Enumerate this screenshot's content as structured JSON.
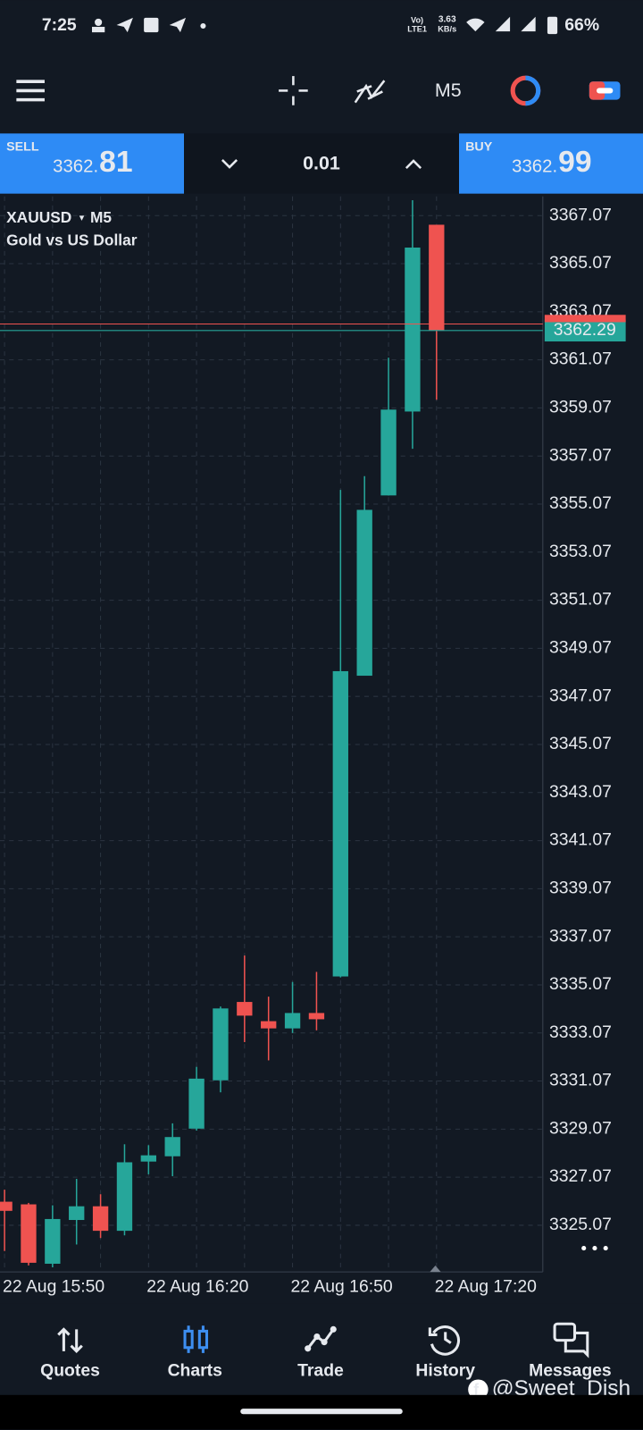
{
  "status_bar": {
    "time": "7:25",
    "network": "Vo)",
    "network_sub": "LTE1",
    "speed": "3.63",
    "speed_unit": "KB/s",
    "battery": "66%"
  },
  "toolbar": {
    "timeframe": "M5"
  },
  "trade_panel": {
    "sell": {
      "label": "SELL",
      "price_prefix": "3362.",
      "price_main": "81"
    },
    "volume": "0.01",
    "buy": {
      "label": "BUY",
      "price_prefix": "3362.",
      "price_main": "99"
    }
  },
  "chart_data": {
    "type": "candlestick",
    "symbol": "XAUUSD",
    "symbol_arrow": "▾",
    "timeframe": "M5",
    "subtitle": "Gold vs US Dollar",
    "categories": [
      "22 Aug 15:50",
      null,
      null,
      null,
      null,
      null,
      "22 Aug 16:20",
      null,
      null,
      null,
      null,
      null,
      "22 Aug 16:50",
      null,
      null,
      null,
      null,
      null,
      "22 Aug 17:20"
    ],
    "series": [
      {
        "up_color": "#26a69a",
        "down_color": "#ef5350",
        "open": [
          3326.05,
          3325.94,
          3323.47,
          3325.29,
          3325.86,
          3324.84,
          3327.72,
          3327.94,
          3329.09,
          3331.1,
          3334.36,
          3333.56,
          3333.26,
          3333.9,
          3335.42,
          3347.93,
          3355.43,
          3358.92,
          3366.69
        ],
        "high": [
          3326.55,
          3326.0,
          3325.9,
          3327.0,
          3326.36,
          3328.44,
          3328.4,
          3329.31,
          3331.66,
          3334.17,
          3336.29,
          3334.58,
          3335.19,
          3335.61,
          3355.66,
          3356.23,
          3361.16,
          3367.71,
          3366.69
        ],
        "low": [
          3324.0,
          3323.4,
          3323.32,
          3324.27,
          3324.54,
          3324.65,
          3327.19,
          3327.11,
          3329.01,
          3330.6,
          3332.69,
          3331.93,
          3333.07,
          3333.18,
          3335.38,
          3347.93,
          3355.43,
          3357.37,
          3359.41
        ],
        "close": [
          3325.67,
          3323.51,
          3325.33,
          3325.86,
          3324.84,
          3327.69,
          3327.98,
          3328.74,
          3331.17,
          3334.09,
          3333.79,
          3333.26,
          3333.9,
          3333.64,
          3348.12,
          3354.83,
          3359.0,
          3365.74,
          3362.29
        ]
      }
    ],
    "ylim": [
      3323.13,
      3367.87
    ],
    "yticks": [
      3325.07,
      3327.07,
      3329.07,
      3331.07,
      3333.07,
      3335.07,
      3337.07,
      3339.07,
      3341.07,
      3343.07,
      3345.07,
      3347.07,
      3349.07,
      3351.07,
      3353.07,
      3355.07,
      3357.07,
      3359.07,
      3361.07,
      3363.07,
      3365.07,
      3367.07
    ],
    "grid": true,
    "current_price": 3362.29
  },
  "bottom_nav": [
    {
      "label": "Quotes"
    },
    {
      "label": "Charts"
    },
    {
      "label": "Trade"
    },
    {
      "label": "History"
    },
    {
      "label": "Messages"
    }
  ],
  "watermark": "@Sweet_Dish"
}
